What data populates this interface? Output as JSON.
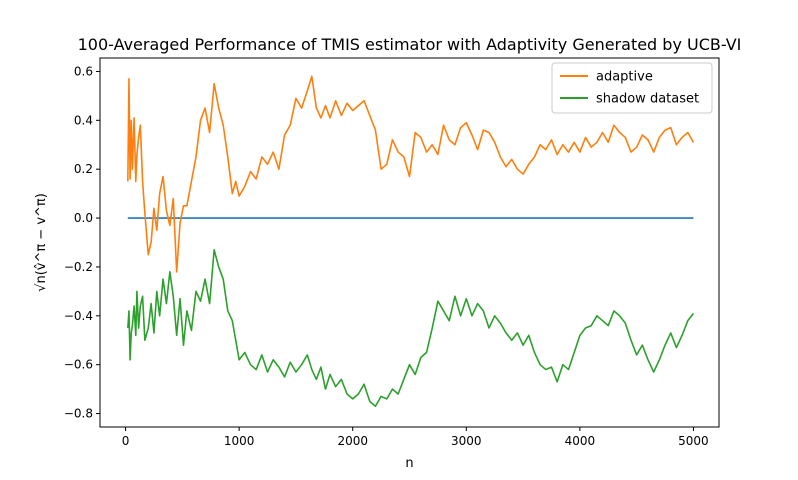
{
  "chart_data": {
    "type": "line",
    "title": "100-Averaged Performance of TMIS estimator with Adaptivity Generated by UCB-VI",
    "xlabel": "n",
    "ylabel": "√n(v̂^π − v^π)",
    "xlim": [
      -225,
      5225
    ],
    "ylim": [
      -0.855,
      0.655
    ],
    "x_ticks": [
      0,
      1000,
      2000,
      3000,
      4000,
      5000
    ],
    "x_tick_labels": [
      "0",
      "1000",
      "2000",
      "3000",
      "4000",
      "5000"
    ],
    "y_ticks": [
      -0.8,
      -0.6,
      -0.4,
      -0.2,
      0.0,
      0.2,
      0.4,
      0.6
    ],
    "y_tick_labels": [
      "−0.8",
      "−0.6",
      "−0.4",
      "−0.2",
      "0.0",
      "0.2",
      "0.4",
      "0.6"
    ],
    "grid": false,
    "legend_position": "top-right",
    "series": [
      {
        "name": "",
        "color": "#1f77b4",
        "x": [
          20,
          5000
        ],
        "y": [
          0.0,
          0.0
        ]
      },
      {
        "name": "adaptive",
        "color": "#ff7f0e",
        "x": [
          20,
          30,
          40,
          50,
          60,
          75,
          90,
          100,
          115,
          130,
          150,
          170,
          200,
          225,
          250,
          275,
          300,
          330,
          360,
          390,
          420,
          450,
          480,
          510,
          540,
          580,
          620,
          660,
          700,
          740,
          780,
          820,
          860,
          900,
          940,
          970,
          1000,
          1050,
          1100,
          1150,
          1200,
          1250,
          1300,
          1350,
          1400,
          1450,
          1500,
          1550,
          1600,
          1640,
          1680,
          1720,
          1760,
          1800,
          1850,
          1900,
          1950,
          2000,
          2050,
          2100,
          2150,
          2200,
          2250,
          2300,
          2350,
          2400,
          2450,
          2500,
          2550,
          2600,
          2650,
          2700,
          2750,
          2800,
          2850,
          2900,
          2950,
          3000,
          3050,
          3100,
          3150,
          3200,
          3250,
          3300,
          3350,
          3400,
          3450,
          3500,
          3550,
          3600,
          3650,
          3700,
          3750,
          3800,
          3850,
          3900,
          3950,
          4000,
          4050,
          4100,
          4150,
          4200,
          4250,
          4300,
          4350,
          4400,
          4450,
          4500,
          4550,
          4600,
          4650,
          4700,
          4750,
          4800,
          4850,
          4900,
          4950,
          5000
        ],
        "y": [
          0.15,
          0.57,
          0.16,
          0.4,
          0.2,
          0.41,
          0.15,
          0.26,
          0.33,
          0.38,
          0.15,
          0.02,
          -0.15,
          -0.1,
          0.04,
          -0.05,
          0.1,
          0.17,
          0.03,
          -0.03,
          0.08,
          -0.22,
          -0.02,
          0.05,
          0.05,
          0.15,
          0.25,
          0.4,
          0.45,
          0.35,
          0.55,
          0.45,
          0.38,
          0.25,
          0.1,
          0.15,
          0.09,
          0.13,
          0.19,
          0.16,
          0.25,
          0.22,
          0.27,
          0.2,
          0.34,
          0.38,
          0.49,
          0.45,
          0.52,
          0.58,
          0.45,
          0.41,
          0.46,
          0.41,
          0.48,
          0.42,
          0.47,
          0.44,
          0.46,
          0.48,
          0.42,
          0.36,
          0.2,
          0.22,
          0.32,
          0.27,
          0.25,
          0.17,
          0.35,
          0.33,
          0.27,
          0.3,
          0.26,
          0.38,
          0.32,
          0.3,
          0.37,
          0.39,
          0.34,
          0.28,
          0.36,
          0.35,
          0.31,
          0.25,
          0.21,
          0.24,
          0.2,
          0.18,
          0.22,
          0.25,
          0.3,
          0.28,
          0.32,
          0.26,
          0.3,
          0.27,
          0.31,
          0.27,
          0.33,
          0.29,
          0.31,
          0.35,
          0.31,
          0.38,
          0.35,
          0.33,
          0.27,
          0.29,
          0.34,
          0.32,
          0.27,
          0.33,
          0.36,
          0.37,
          0.3,
          0.33,
          0.35,
          0.31
        ]
      },
      {
        "name": "shadow dataset",
        "color": "#2ca02c",
        "x": [
          20,
          30,
          40,
          50,
          60,
          75,
          90,
          100,
          115,
          130,
          150,
          170,
          200,
          225,
          250,
          275,
          300,
          330,
          360,
          390,
          420,
          450,
          480,
          510,
          540,
          580,
          620,
          660,
          700,
          740,
          780,
          820,
          860,
          900,
          940,
          970,
          1000,
          1050,
          1100,
          1150,
          1200,
          1250,
          1300,
          1350,
          1400,
          1450,
          1500,
          1550,
          1600,
          1640,
          1680,
          1720,
          1760,
          1800,
          1850,
          1900,
          1950,
          2000,
          2050,
          2100,
          2150,
          2200,
          2250,
          2300,
          2350,
          2400,
          2450,
          2500,
          2550,
          2600,
          2650,
          2700,
          2750,
          2800,
          2850,
          2900,
          2950,
          3000,
          3050,
          3100,
          3150,
          3200,
          3250,
          3300,
          3350,
          3400,
          3450,
          3500,
          3550,
          3600,
          3650,
          3700,
          3750,
          3800,
          3850,
          3900,
          3950,
          4000,
          4050,
          4100,
          4150,
          4200,
          4250,
          4300,
          4350,
          4400,
          4450,
          4500,
          4550,
          4600,
          4650,
          4700,
          4750,
          4800,
          4850,
          4900,
          4950,
          5000
        ],
        "y": [
          -0.45,
          -0.38,
          -0.58,
          -0.47,
          -0.44,
          -0.36,
          -0.48,
          -0.3,
          -0.45,
          -0.36,
          -0.32,
          -0.5,
          -0.45,
          -0.35,
          -0.47,
          -0.3,
          -0.4,
          -0.25,
          -0.35,
          -0.22,
          -0.32,
          -0.48,
          -0.33,
          -0.52,
          -0.38,
          -0.46,
          -0.3,
          -0.34,
          -0.25,
          -0.35,
          -0.13,
          -0.2,
          -0.25,
          -0.38,
          -0.42,
          -0.5,
          -0.58,
          -0.55,
          -0.6,
          -0.62,
          -0.56,
          -0.63,
          -0.58,
          -0.61,
          -0.65,
          -0.59,
          -0.63,
          -0.6,
          -0.56,
          -0.62,
          -0.66,
          -0.61,
          -0.7,
          -0.64,
          -0.69,
          -0.66,
          -0.72,
          -0.74,
          -0.72,
          -0.68,
          -0.75,
          -0.77,
          -0.73,
          -0.74,
          -0.7,
          -0.72,
          -0.66,
          -0.6,
          -0.64,
          -0.57,
          -0.55,
          -0.45,
          -0.34,
          -0.38,
          -0.42,
          -0.32,
          -0.4,
          -0.33,
          -0.4,
          -0.35,
          -0.38,
          -0.45,
          -0.4,
          -0.43,
          -0.47,
          -0.5,
          -0.47,
          -0.52,
          -0.48,
          -0.55,
          -0.6,
          -0.62,
          -0.61,
          -0.67,
          -0.6,
          -0.62,
          -0.55,
          -0.48,
          -0.45,
          -0.44,
          -0.4,
          -0.42,
          -0.44,
          -0.38,
          -0.4,
          -0.43,
          -0.5,
          -0.56,
          -0.52,
          -0.58,
          -0.63,
          -0.58,
          -0.52,
          -0.47,
          -0.53,
          -0.48,
          -0.42,
          -0.39
        ]
      }
    ]
  }
}
